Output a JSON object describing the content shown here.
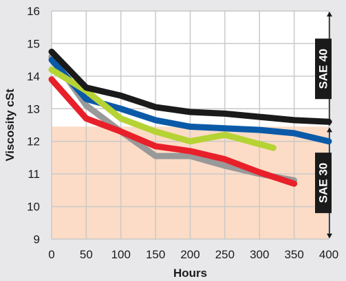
{
  "chart_data": {
    "type": "line",
    "xlabel": "Hours",
    "ylabel": "Viscosity cSt",
    "xlim": [
      0,
      400
    ],
    "ylim": [
      9,
      16
    ],
    "x_ticks": [
      0,
      50,
      100,
      150,
      200,
      250,
      300,
      350,
      400
    ],
    "y_ticks": [
      9,
      10,
      11,
      12,
      13,
      14,
      15,
      16
    ],
    "grid": true,
    "bands": [
      {
        "label": "SAE 40",
        "range": [
          12.45,
          16
        ],
        "color": "#ffffff"
      },
      {
        "label": "SAE 30",
        "range": [
          9,
          12.45
        ],
        "color": "#fcdcc6"
      }
    ],
    "series": [
      {
        "color": "#999999",
        "x": [
          0,
          50,
          100,
          150,
          200,
          250,
          300,
          350
        ],
        "y": [
          14.6,
          13.1,
          12.3,
          11.55,
          11.55,
          11.25,
          11.0,
          10.8
        ]
      },
      {
        "color": "#0b5aa8",
        "x": [
          0,
          50,
          100,
          150,
          200,
          250,
          300,
          350,
          400
        ],
        "y": [
          14.5,
          13.3,
          13.0,
          12.65,
          12.45,
          12.4,
          12.35,
          12.25,
          12.0
        ]
      },
      {
        "color": "#b5d335",
        "x": [
          0,
          50,
          100,
          150,
          200,
          250,
          320
        ],
        "y": [
          14.2,
          13.55,
          12.7,
          12.3,
          12.0,
          12.2,
          11.8
        ]
      },
      {
        "color": "#e8202a",
        "x": [
          0,
          50,
          100,
          150,
          200,
          250,
          300,
          350
        ],
        "y": [
          13.9,
          12.7,
          12.3,
          11.85,
          11.7,
          11.45,
          11.05,
          10.7
        ]
      },
      {
        "color": "#1a1a1a",
        "x": [
          0,
          50,
          100,
          150,
          200,
          250,
          300,
          350,
          400
        ],
        "y": [
          14.75,
          13.65,
          13.4,
          13.05,
          12.9,
          12.85,
          12.75,
          12.65,
          12.6
        ]
      }
    ]
  }
}
